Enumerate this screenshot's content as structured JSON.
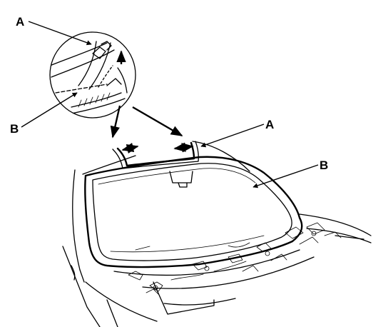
{
  "figure": {
    "callouts": [
      {
        "id": "A-top",
        "label": "A"
      },
      {
        "id": "B-left",
        "label": "B"
      },
      {
        "id": "A-right",
        "label": "A"
      },
      {
        "id": "B-right",
        "label": "B"
      }
    ]
  },
  "colors": {
    "line": "#000000",
    "background": "#ffffff"
  }
}
